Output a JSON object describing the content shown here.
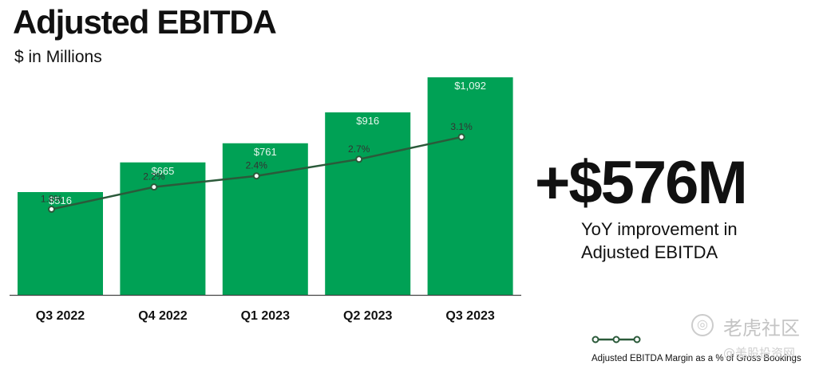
{
  "title": "Adjusted EBITDA",
  "subtitle": "$ in Millions",
  "chart_data": {
    "type": "bar",
    "categories": [
      "Q3 2022",
      "Q4 2022",
      "Q1 2023",
      "Q2 2023",
      "Q3 2023"
    ],
    "series": [
      {
        "name": "Adjusted EBITDA",
        "type": "bar",
        "values": [
          516,
          665,
          761,
          916,
          1092
        ],
        "labels": [
          "$516",
          "$665",
          "$761",
          "$916",
          "$1,092"
        ],
        "color": "#00A155"
      },
      {
        "name": "Adjusted EBITDA Margin as a % of Gross Bookings",
        "type": "line",
        "values": [
          1.8,
          2.2,
          2.4,
          2.7,
          3.1
        ],
        "labels": [
          "1.8%",
          "2.2%",
          "2.4%",
          "2.7%",
          "3.1%"
        ],
        "color": "#2B5A3A"
      }
    ],
    "ylim": [
      0,
      1200
    ],
    "margin_ylim": [
      0,
      3.5
    ],
    "grid": false,
    "legend": "bottom-right"
  },
  "highlight": {
    "value": "+$576M",
    "caption": "YoY improvement in Adjusted EBITDA"
  },
  "legend_label": "Adjusted EBITDA Margin as a % of Gross Bookings",
  "colors": {
    "bar": "#00A155",
    "line": "#2B5A3A",
    "bar_label": "#e8f7ee",
    "axis": "#444444"
  },
  "watermark": {
    "text": "老虎社区",
    "subtext": "@美股投资网"
  }
}
